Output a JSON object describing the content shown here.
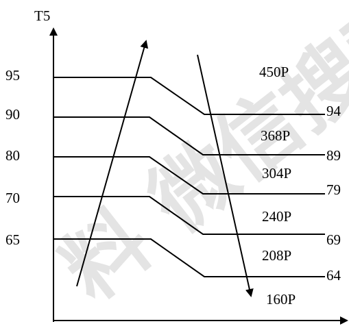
{
  "axis": {
    "y_label": "T5"
  },
  "levels": [
    {
      "left": "95",
      "right": "94"
    },
    {
      "left": "90",
      "right": "89"
    },
    {
      "left": "80",
      "right": "79"
    },
    {
      "left": "70",
      "right": "69"
    },
    {
      "left": "65",
      "right": "64"
    }
  ],
  "loads": [
    "450P",
    "368P",
    "304P",
    "240P",
    "208P",
    "160P"
  ],
  "watermark": {
    "text": "料 微信搜索"
  }
}
